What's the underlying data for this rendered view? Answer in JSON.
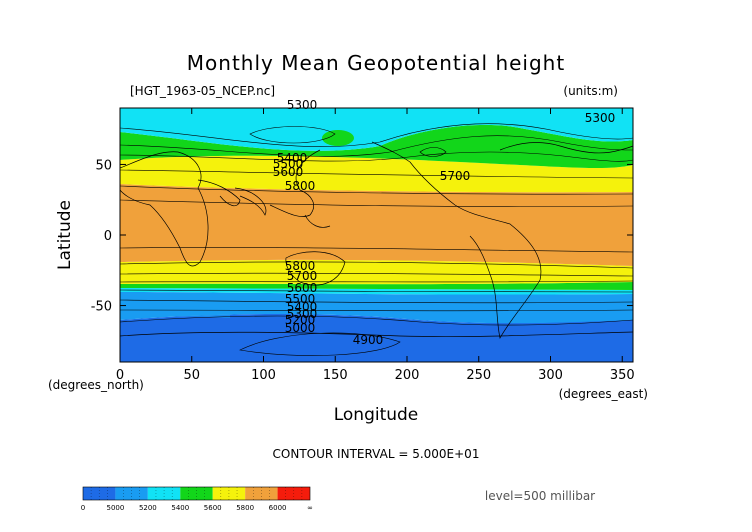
{
  "chart_data": {
    "type": "filled-contour-map",
    "title": "Monthly Mean Geopotential height",
    "file_label": "[HGT_1963-05_NCEP.nc]",
    "units_label": "(units:m)",
    "xlabel": "Longitude",
    "ylabel": "Latitude",
    "x_unit_label": "(degrees_east)",
    "y_unit_label": "(degrees_north)",
    "xlim": [
      0,
      357.5
    ],
    "ylim": [
      -90,
      90
    ],
    "x_ticks": [
      0,
      50,
      100,
      150,
      200,
      250,
      300,
      350
    ],
    "y_ticks": [
      50,
      0,
      -50
    ],
    "contour_interval_text": "CONTOUR INTERVAL = 5.000E+01",
    "level_text": "level=500 millibar",
    "contour_labels": [
      "5300",
      "5300",
      "5400",
      "5500",
      "5600",
      "5700",
      "5800",
      "5800",
      "5700",
      "5600",
      "5500",
      "5400",
      "5300",
      "5200",
      "5000",
      "4900"
    ],
    "fill_bands": [
      {
        "from": 0,
        "to": 5000,
        "color": "#1e6be6"
      },
      {
        "from": 5000,
        "to": 5200,
        "color": "#199cf2"
      },
      {
        "from": 5200,
        "to": 5400,
        "color": "#11e2f5"
      },
      {
        "from": 5400,
        "to": 5600,
        "color": "#12d61a"
      },
      {
        "from": 5600,
        "to": 5800,
        "color": "#f5f20c"
      },
      {
        "from": 5800,
        "to": 6000,
        "color": "#f0a13b"
      },
      {
        "from": 6000,
        "to": null,
        "color": "#f51c0c"
      }
    ],
    "colorbar_ticks": [
      "0",
      "5000",
      "5200",
      "5400",
      "5600",
      "5800",
      "6000",
      "∞"
    ]
  }
}
